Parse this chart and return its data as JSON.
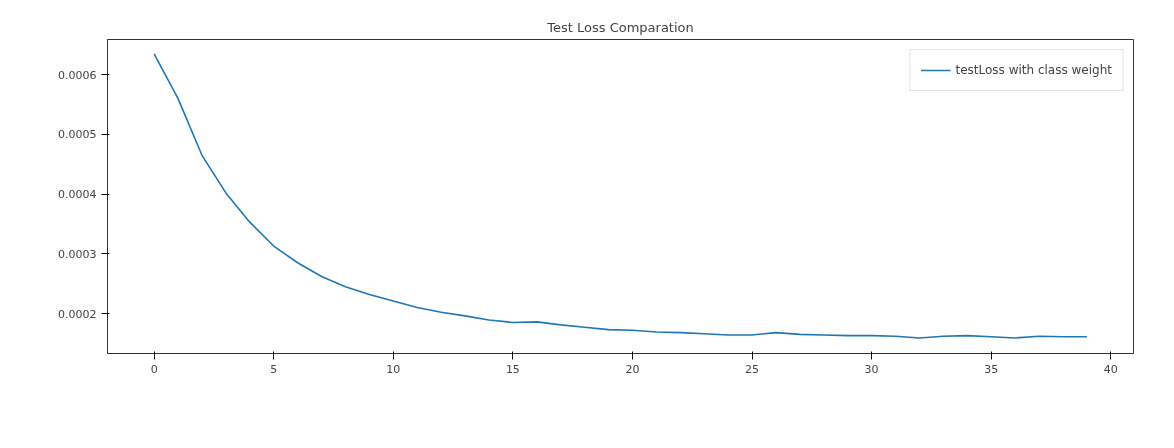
{
  "chart_data": {
    "type": "line",
    "title": "Test Loss Comparation",
    "x": [
      0,
      1,
      2,
      3,
      4,
      5,
      6,
      7,
      8,
      9,
      10,
      11,
      12,
      13,
      14,
      15,
      16,
      17,
      18,
      19,
      20,
      21,
      22,
      23,
      24,
      25,
      26,
      27,
      28,
      29,
      30,
      31,
      32,
      33,
      34,
      35,
      36,
      37,
      38,
      39
    ],
    "series": [
      {
        "name": "testLoss with class weight",
        "color": "#1f77b4",
        "values": [
          0.000635,
          0.00056,
          0.000465,
          0.000402,
          0.000353,
          0.000313,
          0.000285,
          0.000262,
          0.000245,
          0.000232,
          0.000221,
          0.00021,
          0.000202,
          0.000196,
          0.000189,
          0.000185,
          0.000186,
          0.000181,
          0.000177,
          0.000173,
          0.000172,
          0.000169,
          0.000168,
          0.000166,
          0.000164,
          0.000164,
          0.000168,
          0.000165,
          0.000164,
          0.000163,
          0.000163,
          0.000162,
          0.000159,
          0.000162,
          0.000163,
          0.000161,
          0.000159,
          0.000162,
          0.000161,
          0.000161
        ]
      }
    ],
    "xlim": [
      -1.95,
      40.95
    ],
    "ylim": [
      0.000133,
      0.000659
    ],
    "xticks": [
      0,
      5,
      10,
      15,
      20,
      25,
      30,
      35,
      40
    ],
    "yticks": [
      0.0002,
      0.0003,
      0.0004,
      0.0005,
      0.0006
    ],
    "legend": "top right",
    "grid": false,
    "marker": "none",
    "line_style": "solid"
  }
}
